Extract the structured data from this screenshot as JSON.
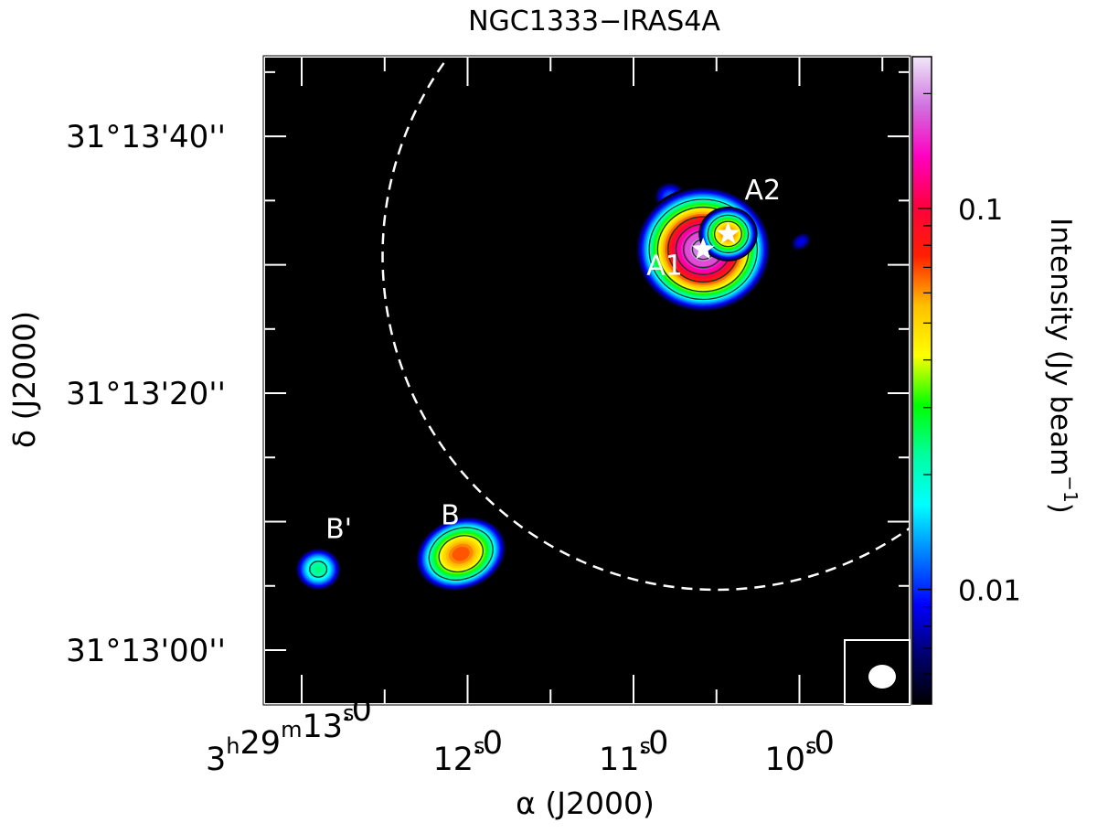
{
  "chart_data": {
    "type": "heatmap",
    "title": "NGC1333−IRAS4A",
    "xlabel": "α (J2000)",
    "ylabel": "δ (J2000)",
    "colorbar_label": "Intensity (Jy beam⁻¹)",
    "colorbar_label_parts": [
      "Intensity (Jy beam",
      "−1",
      ")"
    ],
    "ra_range_s": [
      13.226,
      9.336
    ],
    "dec_offset_range_arcsec": [
      -4.2,
      46.2
    ],
    "dec_reference": "31°13'00''",
    "x_ticks": [
      {
        "value": 13.0,
        "parts": [
          "3",
          "h",
          "29",
          "m",
          "13",
          "s",
          ".0"
        ]
      },
      {
        "value": 12.0,
        "parts": [
          "",
          "",
          "",
          "",
          "12",
          "s",
          ".0"
        ]
      },
      {
        "value": 11.0,
        "parts": [
          "",
          "",
          "",
          "",
          "11",
          "s",
          ".0"
        ]
      },
      {
        "value": 10.0,
        "parts": [
          "",
          "",
          "",
          "",
          "10",
          "s",
          ".0"
        ]
      }
    ],
    "x_minor_ticks": [
      12.5,
      11.5,
      10.5,
      9.5
    ],
    "y_ticks": [
      {
        "value": 40,
        "label": "31°13'40''"
      },
      {
        "value": 20,
        "label": "31°13'20''"
      },
      {
        "value": 0,
        "label": "31°13'00''"
      }
    ],
    "y_major_ticks": [
      0,
      10,
      20,
      30,
      40
    ],
    "y_minor_ticks": [
      5,
      15,
      25,
      35,
      45
    ],
    "colorbar": {
      "scale": "log",
      "range": [
        0.005,
        0.25
      ],
      "major_ticks": [
        {
          "value": 0.1,
          "label": "0.1"
        },
        {
          "value": 0.01,
          "label": "0.01"
        }
      ],
      "minor_ticks": [
        0.2,
        0.09,
        0.08,
        0.07,
        0.06,
        0.05,
        0.04,
        0.03,
        0.02,
        0.009,
        0.008,
        0.007,
        0.006
      ],
      "colormap": [
        "#000000",
        "#000070",
        "#0000ff",
        "#0080ff",
        "#00ffff",
        "#00ffa0",
        "#00ff00",
        "#ffff00",
        "#ffc000",
        "#ff2000",
        "#ff0040",
        "#ff00c0",
        "#d070e0",
        "#f0e8f8"
      ]
    },
    "contour_levels": [
      0.02,
      0.04,
      0.08,
      0.12,
      0.16,
      0.2
    ],
    "sources": [
      {
        "label": "",
        "ra": 10.78,
        "dec": 35.3,
        "peak": 0.012,
        "sx": 13,
        "sy": 12,
        "rot": 0
      },
      {
        "label": "",
        "ra": 9.99,
        "dec": 31.8,
        "peak": 0.009,
        "sx": 11,
        "sy": 8,
        "rot": -35
      },
      {
        "label": "A1",
        "ra": 10.58,
        "dec": 31.2,
        "peak": 0.22,
        "sx": 27,
        "sy": 25,
        "rot": 0
      },
      {
        "label": "A2",
        "ra": 10.43,
        "dec": 32.4,
        "peak": 0.07,
        "sx": 14,
        "sy": 13,
        "rot": 0
      },
      {
        "label": "B",
        "ra": 12.04,
        "dec": 7.5,
        "peak": 0.075,
        "sx": 22,
        "sy": 17,
        "rot": -20
      },
      {
        "label": "B'",
        "ra": 12.9,
        "dec": 6.3,
        "peak": 0.025,
        "sx": 14,
        "sy": 13,
        "rot": 0
      }
    ],
    "stars": [
      {
        "name": "A1",
        "ra": 10.58,
        "dec": 31.2
      },
      {
        "name": "A2",
        "ra": 10.43,
        "dec": 32.4
      }
    ],
    "primary_beam": {
      "ra": 10.5,
      "dec": 30.7,
      "radius_arcsec": 26
    }
  }
}
